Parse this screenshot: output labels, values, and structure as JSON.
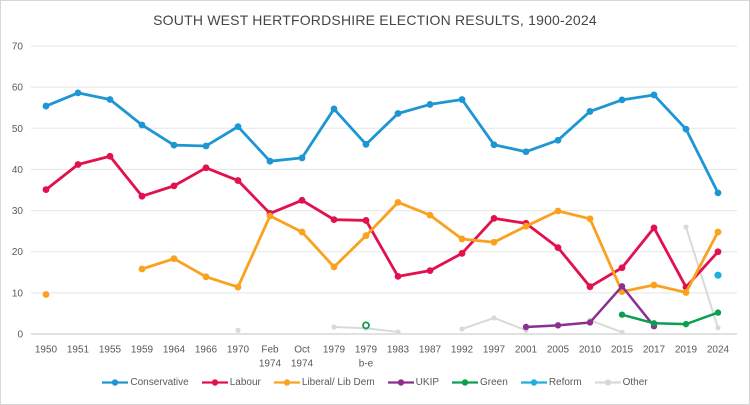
{
  "chart_data": {
    "type": "line",
    "title": "SOUTH WEST HERTFORDSHIRE ELECTION RESULTS, 1900-2024",
    "categories": [
      "1950",
      "1951",
      "1955",
      "1959",
      "1964",
      "1966",
      "1970",
      "Feb\n1974",
      "Oct\n1974",
      "1979",
      "1979\nb-e",
      "1983",
      "1987",
      "1992",
      "1997",
      "2001",
      "2005",
      "2010",
      "2015",
      "2017",
      "2019",
      "2024"
    ],
    "ylim": [
      0,
      70
    ],
    "yticks": [
      0,
      10,
      20,
      30,
      40,
      50,
      60,
      70
    ],
    "grid": true,
    "legend_position": "bottom",
    "series": [
      {
        "name": "Conservative",
        "color": "#1e96d4",
        "values": [
          55.4,
          58.6,
          57.0,
          50.8,
          45.9,
          45.7,
          50.4,
          42.0,
          42.8,
          54.7,
          46.1,
          53.6,
          55.8,
          57.0,
          46.0,
          44.3,
          47.1,
          54.1,
          56.9,
          58.1,
          49.8,
          34.3
        ]
      },
      {
        "name": "Labour",
        "color": "#e3104e",
        "values": [
          35.1,
          41.2,
          43.2,
          33.5,
          36.0,
          40.4,
          37.3,
          29.3,
          32.5,
          27.8,
          27.6,
          14.0,
          15.4,
          19.6,
          28.1,
          26.9,
          21.0,
          11.5,
          16.1,
          25.8,
          11.4,
          20.0
        ]
      },
      {
        "name": "Liberal/ Lib Dem",
        "color": "#faa21e",
        "values": [
          9.6,
          null,
          null,
          15.8,
          18.3,
          13.9,
          11.4,
          28.7,
          24.8,
          16.3,
          23.9,
          32.0,
          28.9,
          23.1,
          22.3,
          26.2,
          29.9,
          28.0,
          10.3,
          11.9,
          10.1,
          24.8
        ]
      },
      {
        "name": "UKIP",
        "color": "#8b2f90",
        "values": [
          null,
          null,
          null,
          null,
          null,
          null,
          null,
          null,
          null,
          null,
          null,
          null,
          null,
          null,
          null,
          1.7,
          2.1,
          2.8,
          11.6,
          1.9,
          null,
          null
        ]
      },
      {
        "name": "Green",
        "color": "#0ba04f",
        "values": [
          null,
          null,
          null,
          null,
          null,
          null,
          null,
          null,
          null,
          null,
          2.1,
          null,
          null,
          null,
          null,
          null,
          null,
          null,
          4.7,
          2.6,
          2.4,
          5.2
        ],
        "hollow_indices": [
          10
        ]
      },
      {
        "name": "Reform",
        "color": "#1db0d9",
        "values": [
          null,
          null,
          null,
          null,
          null,
          null,
          null,
          null,
          null,
          null,
          null,
          null,
          null,
          null,
          null,
          null,
          null,
          null,
          null,
          null,
          null,
          14.3
        ]
      },
      {
        "name": "Other",
        "color": "#d9d9d9",
        "values": [
          null,
          null,
          null,
          null,
          null,
          null,
          0.9,
          null,
          null,
          1.7,
          1.4,
          0.5,
          null,
          1.2,
          3.9,
          0.9,
          null,
          3.4,
          0.4,
          null,
          26.0,
          1.5
        ]
      }
    ]
  }
}
